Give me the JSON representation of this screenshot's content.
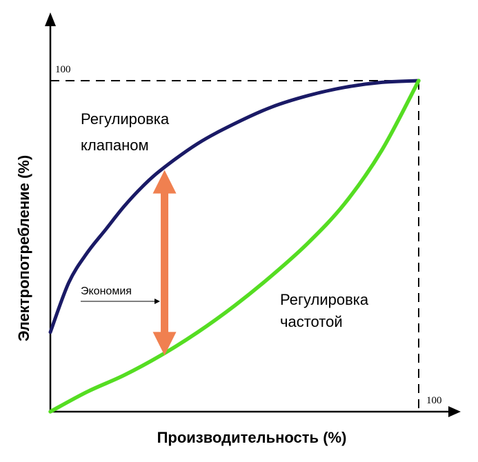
{
  "chart_data": {
    "type": "line",
    "xlabel": "Производительность (%)",
    "ylabel": "Электропотребление (%)",
    "xlim": [
      0,
      100
    ],
    "ylim": [
      0,
      100
    ],
    "x_tick_labels": [
      "100"
    ],
    "y_tick_labels": [
      "100"
    ],
    "series": [
      {
        "name": "Регулировка клапаном",
        "name_lines": [
          "Регулировка",
          "клапаном"
        ],
        "color": "#1a1a66",
        "x": [
          0,
          5,
          10,
          15,
          20,
          25,
          30,
          40,
          50,
          60,
          70,
          80,
          90,
          100
        ],
        "y": [
          24,
          39,
          48,
          55,
          62,
          68,
          73,
          81,
          87,
          92,
          95.5,
          98,
          99.5,
          100
        ]
      },
      {
        "name": "Регулировка частотой",
        "name_lines": [
          "Регулировка",
          "частотой"
        ],
        "color": "#55dd22",
        "x": [
          0,
          10,
          20,
          30,
          40,
          50,
          60,
          70,
          80,
          90,
          100
        ],
        "y": [
          0,
          6,
          11,
          17,
          24,
          32,
          41,
          51,
          63,
          79,
          100
        ]
      }
    ],
    "annotations": {
      "savings_label": "Экономия",
      "savings_arrow": {
        "x": 31,
        "y_from": 17,
        "y_to": 73,
        "color": "#f08050"
      }
    },
    "reference_lines": {
      "x": 100,
      "y": 100,
      "style": "dashed"
    },
    "grid": false,
    "legend": "none"
  }
}
